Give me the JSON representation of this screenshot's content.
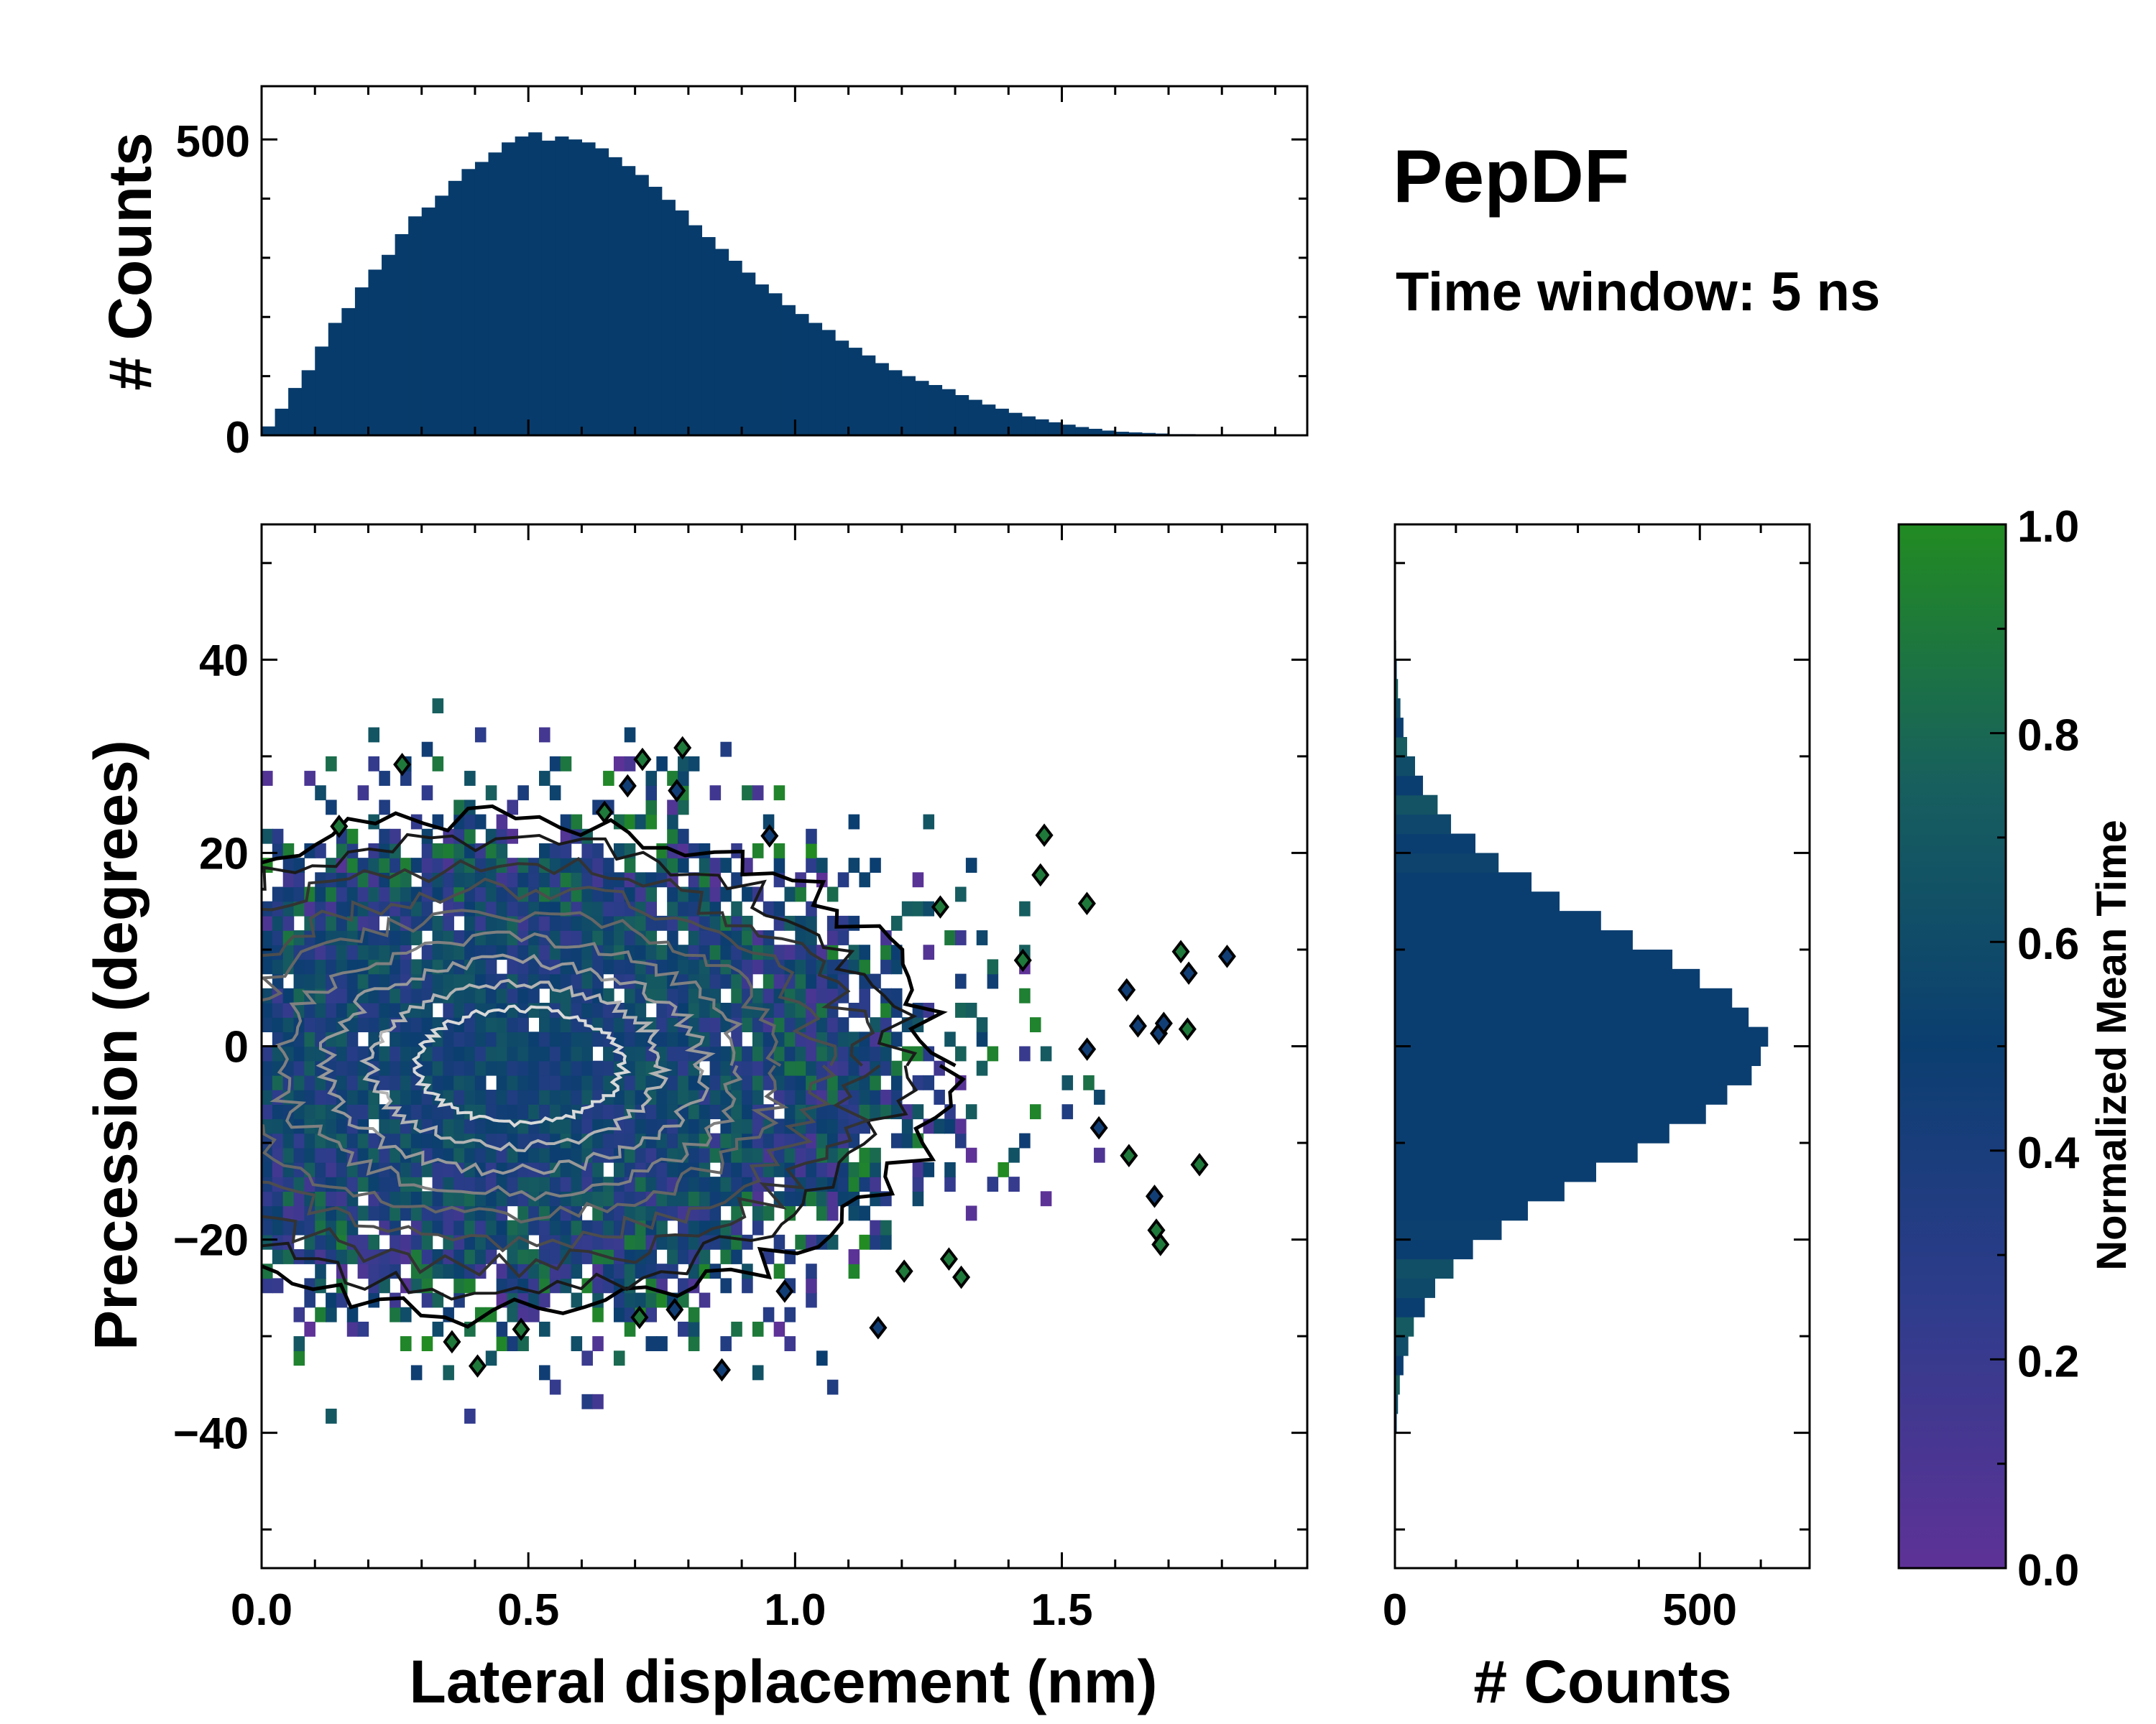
{
  "chart_data": [
    {
      "type": "bar",
      "id": "top-histogram",
      "xlabel": "",
      "ylabel": "# Counts",
      "xlim": [
        0,
        1.96
      ],
      "ylim": [
        0,
        590
      ],
      "ytick_labels": [
        "0",
        "500"
      ],
      "bin_width": 0.025,
      "x_start": 0,
      "color": "#073b6b",
      "values": [
        15,
        45,
        80,
        110,
        150,
        190,
        215,
        250,
        280,
        305,
        340,
        370,
        385,
        405,
        430,
        450,
        462,
        478,
        495,
        505,
        512,
        498,
        505,
        500,
        495,
        485,
        470,
        455,
        440,
        420,
        398,
        380,
        355,
        335,
        315,
        295,
        275,
        255,
        240,
        220,
        205,
        190,
        178,
        160,
        148,
        135,
        122,
        110,
        100,
        92,
        85,
        78,
        68,
        60,
        52,
        45,
        38,
        32,
        27,
        22,
        18,
        14,
        11,
        8,
        6,
        5,
        4,
        3,
        2,
        2,
        1,
        1,
        1,
        1,
        0,
        1,
        0,
        0
      ]
    },
    {
      "type": "heatmap",
      "id": "main-2d-histogram",
      "xlabel": "Lateral displacement (nm)",
      "ylabel": "Precession (degrees)",
      "xlim": [
        0,
        1.96
      ],
      "ylim": [
        -54,
        54
      ],
      "xtick_labels": [
        "0.0",
        "0.5",
        "1.0",
        "1.5"
      ],
      "xtick_values": [
        0,
        0.5,
        1.0,
        1.5
      ],
      "ytick_labels": [
        "−40",
        "−20",
        "0",
        "20",
        "40"
      ],
      "ytick_values": [
        -40,
        -20,
        0,
        20,
        40
      ],
      "bin_width_x": 0.02,
      "bin_width_y": 1.5,
      "density_peak": [
        0.45,
        -2
      ],
      "contour_levels": 9,
      "contour_colors": [
        "#000000",
        "#1a1a1a",
        "#333333",
        "#4d4d4d",
        "#666666",
        "#808080",
        "#999999",
        "#b3b3b3",
        "#d9d9d9"
      ]
    },
    {
      "type": "bar",
      "orientation": "horizontal",
      "id": "right-histogram",
      "xlabel": "# Counts",
      "xlim": [
        0,
        680
      ],
      "ylim": [
        -54,
        54
      ],
      "xtick_labels": [
        "0",
        "500"
      ],
      "bin_width": 2,
      "y_start": -40,
      "values": [
        3,
        5,
        8,
        14,
        22,
        31,
        49,
        66,
        96,
        128,
        175,
        218,
        278,
        330,
        398,
        450,
        510,
        545,
        585,
        600,
        612,
        580,
        553,
        500,
        455,
        390,
        338,
        270,
        224,
        170,
        132,
        92,
        70,
        46,
        33,
        20,
        14,
        9,
        5,
        3,
        2,
        1,
        1,
        1
      ]
    },
    {
      "type": "colorbar",
      "id": "colorbar",
      "label": "Normalized Mean Time",
      "range": [
        0,
        1
      ],
      "tick_labels": [
        "0.0",
        "0.2",
        "0.4",
        "0.6",
        "0.8",
        "1.0"
      ],
      "tick_values": [
        0,
        0.2,
        0.4,
        0.6,
        0.8,
        1.0
      ],
      "colorscale": [
        "#5e3297",
        "#2f3c8c",
        "#0b3e70",
        "#175f5e",
        "#228b22"
      ]
    }
  ],
  "annotations": {
    "title": "PepDF",
    "subtitle": "Time window: 5 ns"
  }
}
